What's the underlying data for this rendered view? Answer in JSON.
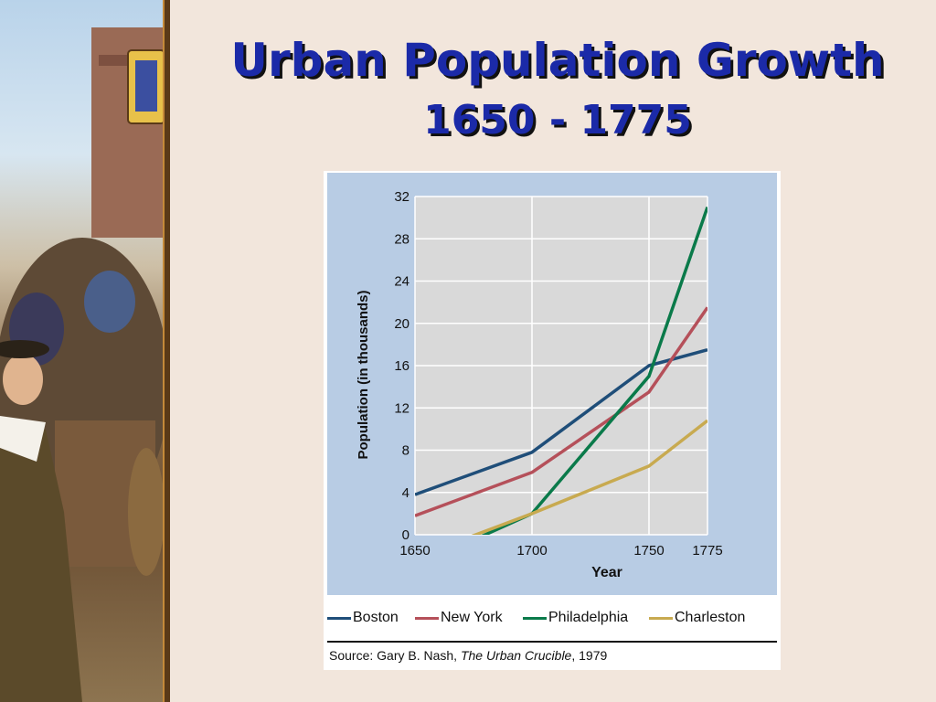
{
  "slide": {
    "title_line1": "Urban Population Growth",
    "title_line2": "1650 - 1775",
    "title_color": "#1b2aa8",
    "background_color": "#f2e6dc"
  },
  "chart_data": {
    "type": "line",
    "title": "",
    "xlabel": "Year",
    "ylabel": "Population (in thousands)",
    "x_ticks": [
      "1650",
      "1700",
      "1750",
      "1775"
    ],
    "y_ticks": [
      "0",
      "4",
      "8",
      "12",
      "16",
      "20",
      "24",
      "28",
      "32"
    ],
    "xlim": [
      1650,
      1775
    ],
    "ylim": [
      0,
      32
    ],
    "grid": true,
    "legend_position": "bottom",
    "plot_background": "#d9d9d9",
    "frame_background": "#b8cce4",
    "series": [
      {
        "name": "Boston",
        "color": "#1f4e79",
        "x": [
          1650,
          1700,
          1750,
          1775
        ],
        "y": [
          3.8,
          7.8,
          16,
          17.5
        ]
      },
      {
        "name": "New York",
        "color": "#b5505a",
        "x": [
          1650,
          1700,
          1750,
          1775
        ],
        "y": [
          1.8,
          5.9,
          13.5,
          21.5
        ]
      },
      {
        "name": "Philadelphia",
        "color": "#0a7a4a",
        "x": [
          1675,
          1700,
          1750,
          1775
        ],
        "y": [
          -0.5,
          2.0,
          15,
          31
        ]
      },
      {
        "name": "Charleston",
        "color": "#c8aa50",
        "x": [
          1670,
          1700,
          1750,
          1775
        ],
        "y": [
          -0.5,
          2.0,
          6.5,
          10.8
        ]
      }
    ],
    "source_prefix": "Source: Gary B. Nash, ",
    "source_title": "The Urban Crucible",
    "source_suffix": ", 1979"
  }
}
